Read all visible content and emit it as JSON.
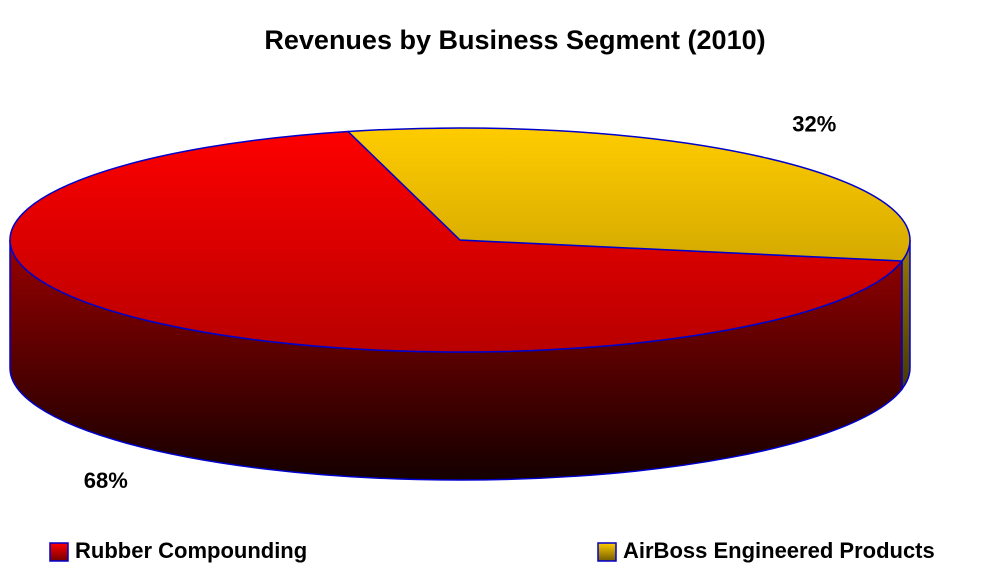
{
  "chart_data": {
    "type": "pie3d",
    "title": "Revenues by Business Segment (2010)",
    "categories": [
      "Rubber Compounding",
      "AirBoss Engineered Products"
    ],
    "values": [
      68,
      32
    ],
    "value_labels": [
      "68%",
      "32%"
    ],
    "colors": [
      "#ff0000",
      "#ffcc00"
    ],
    "edge_color": "#0000cc",
    "legend": "bottom"
  }
}
